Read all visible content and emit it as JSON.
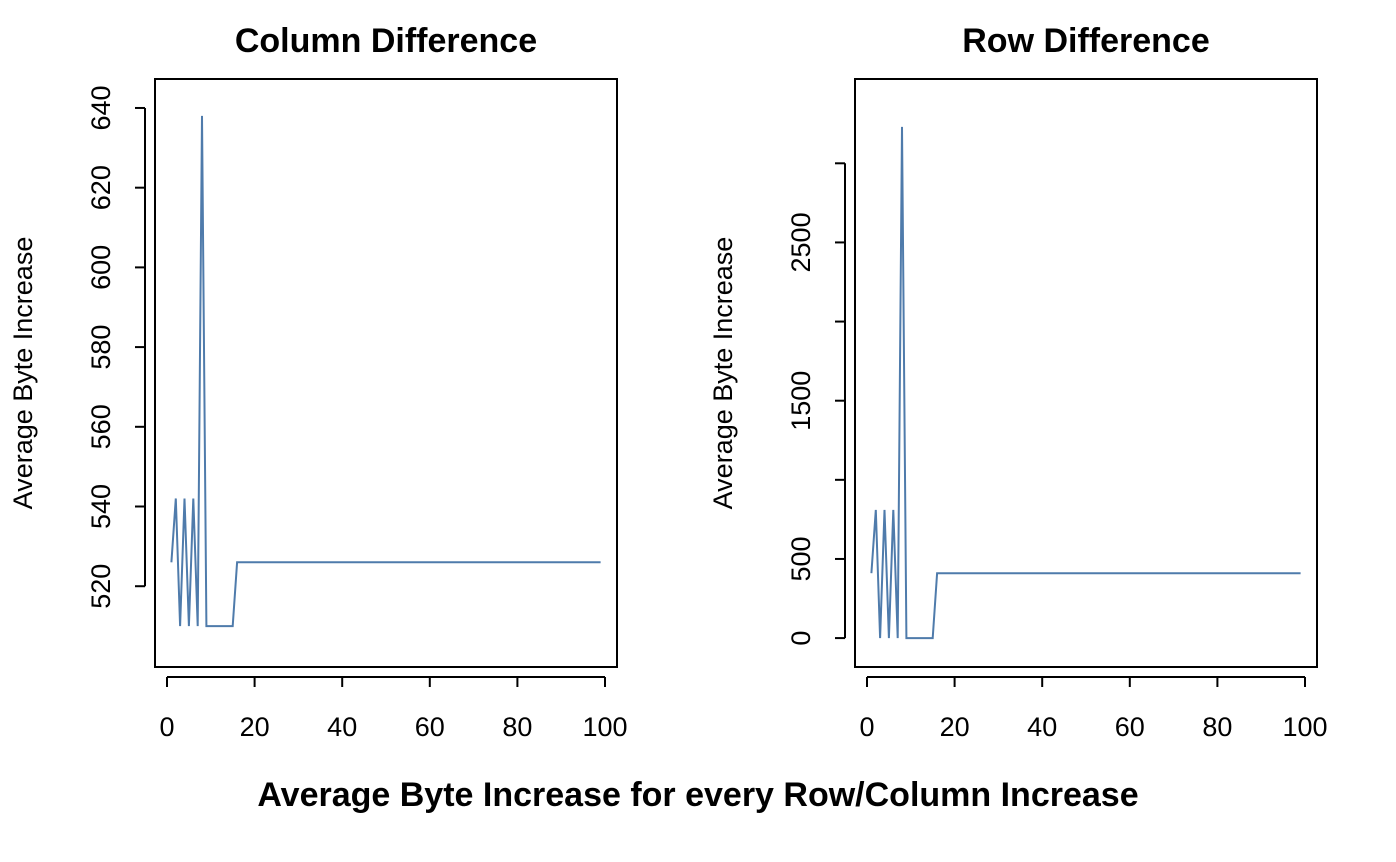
{
  "figure_label": "Average Byte Increase for every Row/Column Increase",
  "colors": {
    "line": "#4f7bab",
    "axis": "#000000",
    "background": "#ffffff"
  },
  "chart_data": [
    {
      "type": "line",
      "title": "Column Difference",
      "xlabel": "",
      "ylabel": "Average Byte Increase",
      "xlim": [
        0,
        100
      ],
      "ylim": [
        505,
        642
      ],
      "xticks": [
        0,
        20,
        40,
        60,
        80,
        100
      ],
      "yticks": [
        520,
        540,
        560,
        580,
        600,
        620,
        640
      ],
      "x": [
        1,
        2,
        3,
        4,
        5,
        6,
        7,
        8,
        9,
        10,
        11,
        12,
        13,
        14,
        15,
        16,
        99
      ],
      "values": [
        526,
        542,
        510,
        542,
        510,
        542,
        510,
        638,
        510,
        510,
        510,
        510,
        510,
        510,
        510,
        526,
        526
      ],
      "series_name": "Column Difference"
    },
    {
      "type": "line",
      "title": "Row Difference",
      "xlabel": "",
      "ylabel": "Average Byte Increase",
      "xlim": [
        0,
        100
      ],
      "ylim": [
        -50,
        3400
      ],
      "xticks": [
        0,
        20,
        40,
        60,
        80,
        100
      ],
      "yticks": [
        0,
        500,
        1000,
        1500,
        2000,
        2500,
        3000
      ],
      "ytick_labels": [
        "0",
        "500",
        "",
        "1500",
        "",
        "2500",
        ""
      ],
      "x": [
        1,
        2,
        3,
        4,
        5,
        6,
        7,
        8,
        9,
        10,
        11,
        12,
        13,
        14,
        15,
        16,
        99
      ],
      "values": [
        410,
        810,
        0,
        810,
        0,
        810,
        0,
        3230,
        0,
        0,
        0,
        0,
        0,
        0,
        0,
        410,
        410
      ],
      "series_name": "Row Difference"
    }
  ]
}
